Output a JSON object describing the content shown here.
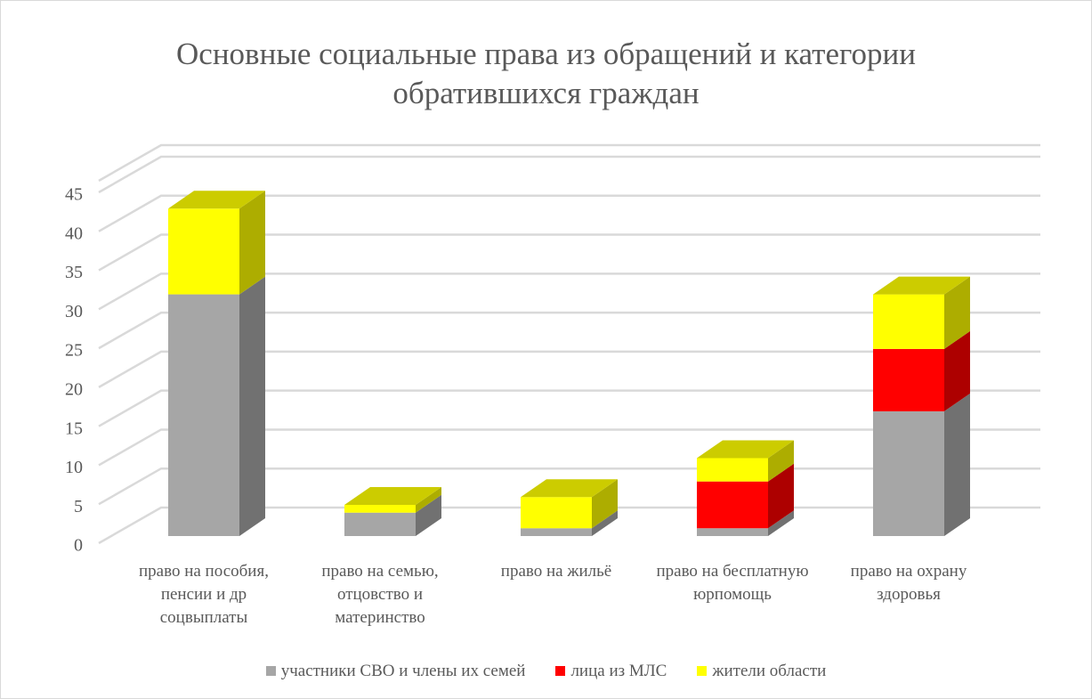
{
  "chart_data": {
    "type": "bar3d_stacked",
    "title": "Основные социальные права из обращений и категории обратившихся граждан",
    "categories": [
      "право на пособия, пенсии и др соцвыплаты",
      "право на семью, отцовство и материнство",
      "право на жильё",
      "право на бесплатную юрпомощь",
      "право на охрану здоровья"
    ],
    "series": [
      {
        "name": "участники СВО и члены их семей",
        "color": "#a6a6a6",
        "values": [
          31,
          3,
          1,
          1,
          16
        ]
      },
      {
        "name": "лица из МЛС",
        "color": "#ff0000",
        "values": [
          0,
          0,
          0,
          6,
          8
        ]
      },
      {
        "name": "жители области",
        "color": "#ffff00",
        "values": [
          11,
          1,
          4,
          3,
          7
        ]
      }
    ],
    "ylim": [
      0,
      45
    ],
    "yticks": [
      0,
      5,
      10,
      15,
      20,
      25,
      30,
      35,
      40,
      45
    ],
    "grid": true,
    "legend": "bottom"
  }
}
